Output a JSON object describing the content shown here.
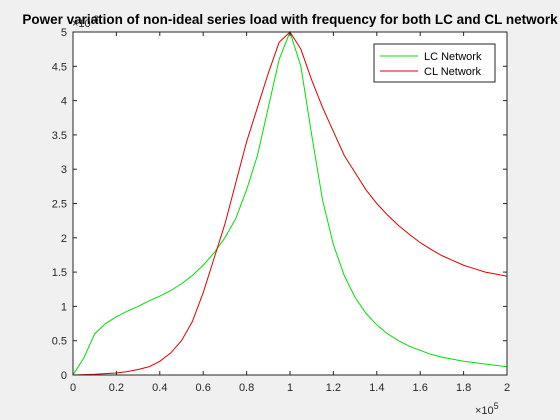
{
  "chart_data": {
    "type": "line",
    "title": "Power variation of non-ideal series load with frequency for both LC and CL network",
    "xlabel": "",
    "ylabel": "",
    "x_multiplier_label": "×10",
    "x_multiplier_exponent": "5",
    "y_multiplier_label": "×10",
    "y_multiplier_exponent": "-3",
    "xlim": [
      0,
      200000
    ],
    "ylim": [
      0,
      0.005
    ],
    "x_ticks": [
      0,
      20000,
      40000,
      60000,
      80000,
      100000,
      120000,
      140000,
      160000,
      180000,
      200000
    ],
    "x_tick_labels": [
      "0",
      "0.2",
      "0.4",
      "0.6",
      "0.8",
      "1",
      "1.2",
      "1.4",
      "1.6",
      "1.8",
      "2"
    ],
    "y_ticks": [
      0,
      0.0005,
      0.001,
      0.0015,
      0.002,
      0.0025,
      0.003,
      0.0035,
      0.004,
      0.0045,
      0.005
    ],
    "y_tick_labels": [
      "0",
      "0.5",
      "1",
      "1.5",
      "2",
      "2.5",
      "3",
      "3.5",
      "4",
      "4.5",
      "5"
    ],
    "legend_position": "top-right",
    "grid": false,
    "series": [
      {
        "name": "LC Network",
        "color": "#00e000",
        "x": [
          0,
          5000,
          10000,
          15000,
          20000,
          25000,
          30000,
          35000,
          40000,
          45000,
          50000,
          55000,
          60000,
          65000,
          70000,
          75000,
          80000,
          85000,
          90000,
          95000,
          100000,
          105000,
          110000,
          115000,
          120000,
          125000,
          130000,
          135000,
          140000,
          145000,
          150000,
          155000,
          160000,
          165000,
          170000,
          175000,
          180000,
          185000,
          190000,
          195000,
          200000
        ],
        "y": [
          0,
          0.00025,
          0.0006,
          0.00075,
          0.00085,
          0.00093,
          0.001,
          0.00108,
          0.00115,
          0.00123,
          0.00133,
          0.00145,
          0.0016,
          0.00178,
          0.002,
          0.00228,
          0.0027,
          0.0032,
          0.0039,
          0.0046,
          0.005,
          0.0045,
          0.0035,
          0.00255,
          0.0019,
          0.00145,
          0.00113,
          0.0009,
          0.00073,
          0.0006,
          0.0005,
          0.00042,
          0.00036,
          0.0003,
          0.00026,
          0.00023,
          0.0002,
          0.00018,
          0.00016,
          0.00014,
          0.00012
        ]
      },
      {
        "name": "CL Network",
        "color": "#e00000",
        "x": [
          0,
          5000,
          10000,
          15000,
          20000,
          25000,
          30000,
          35000,
          40000,
          45000,
          50000,
          55000,
          60000,
          65000,
          70000,
          75000,
          80000,
          85000,
          90000,
          95000,
          100000,
          105000,
          110000,
          115000,
          120000,
          125000,
          130000,
          135000,
          140000,
          145000,
          150000,
          155000,
          160000,
          165000,
          170000,
          175000,
          180000,
          185000,
          190000,
          195000,
          200000
        ],
        "y": [
          0,
          5e-06,
          1e-05,
          2e-05,
          3e-05,
          5e-05,
          8e-05,
          0.00012,
          0.0002,
          0.00032,
          0.0005,
          0.00078,
          0.0012,
          0.0017,
          0.0022,
          0.0028,
          0.0034,
          0.0039,
          0.0044,
          0.00485,
          0.005,
          0.00475,
          0.0043,
          0.0039,
          0.00355,
          0.0032,
          0.00295,
          0.0027,
          0.0025,
          0.00233,
          0.00218,
          0.00205,
          0.00193,
          0.00183,
          0.00174,
          0.00167,
          0.0016,
          0.00155,
          0.0015,
          0.00147,
          0.00144
        ]
      }
    ]
  }
}
